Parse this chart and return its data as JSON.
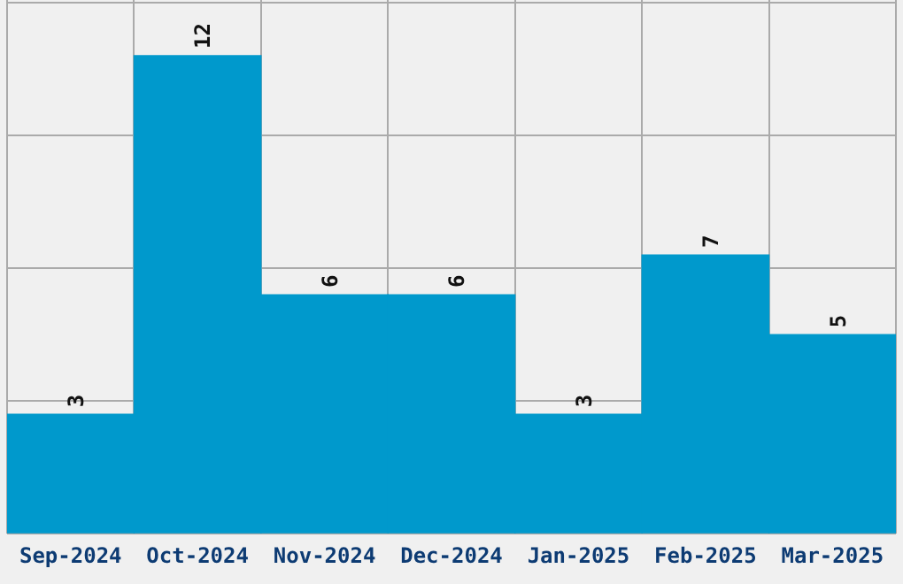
{
  "chart_data": {
    "type": "bar",
    "categories": [
      "Sep-2024",
      "Oct-2024",
      "Nov-2024",
      "Dec-2024",
      "Jan-2025",
      "Feb-2025",
      "Mar-2025"
    ],
    "values": [
      3,
      12,
      6,
      6,
      3,
      7,
      5
    ],
    "color": "#0099cc",
    "ylim": [
      0,
      13.4
    ],
    "yticks": [
      {
        "value": 0,
        "label": null
      },
      {
        "value": 3.33,
        "label": null
      },
      {
        "value": 6.67,
        "label": null
      },
      {
        "value": 10,
        "label": null
      },
      {
        "value": 13.33,
        "label": null
      }
    ],
    "tick_labels": "x",
    "grid": true,
    "data_labels": true
  }
}
